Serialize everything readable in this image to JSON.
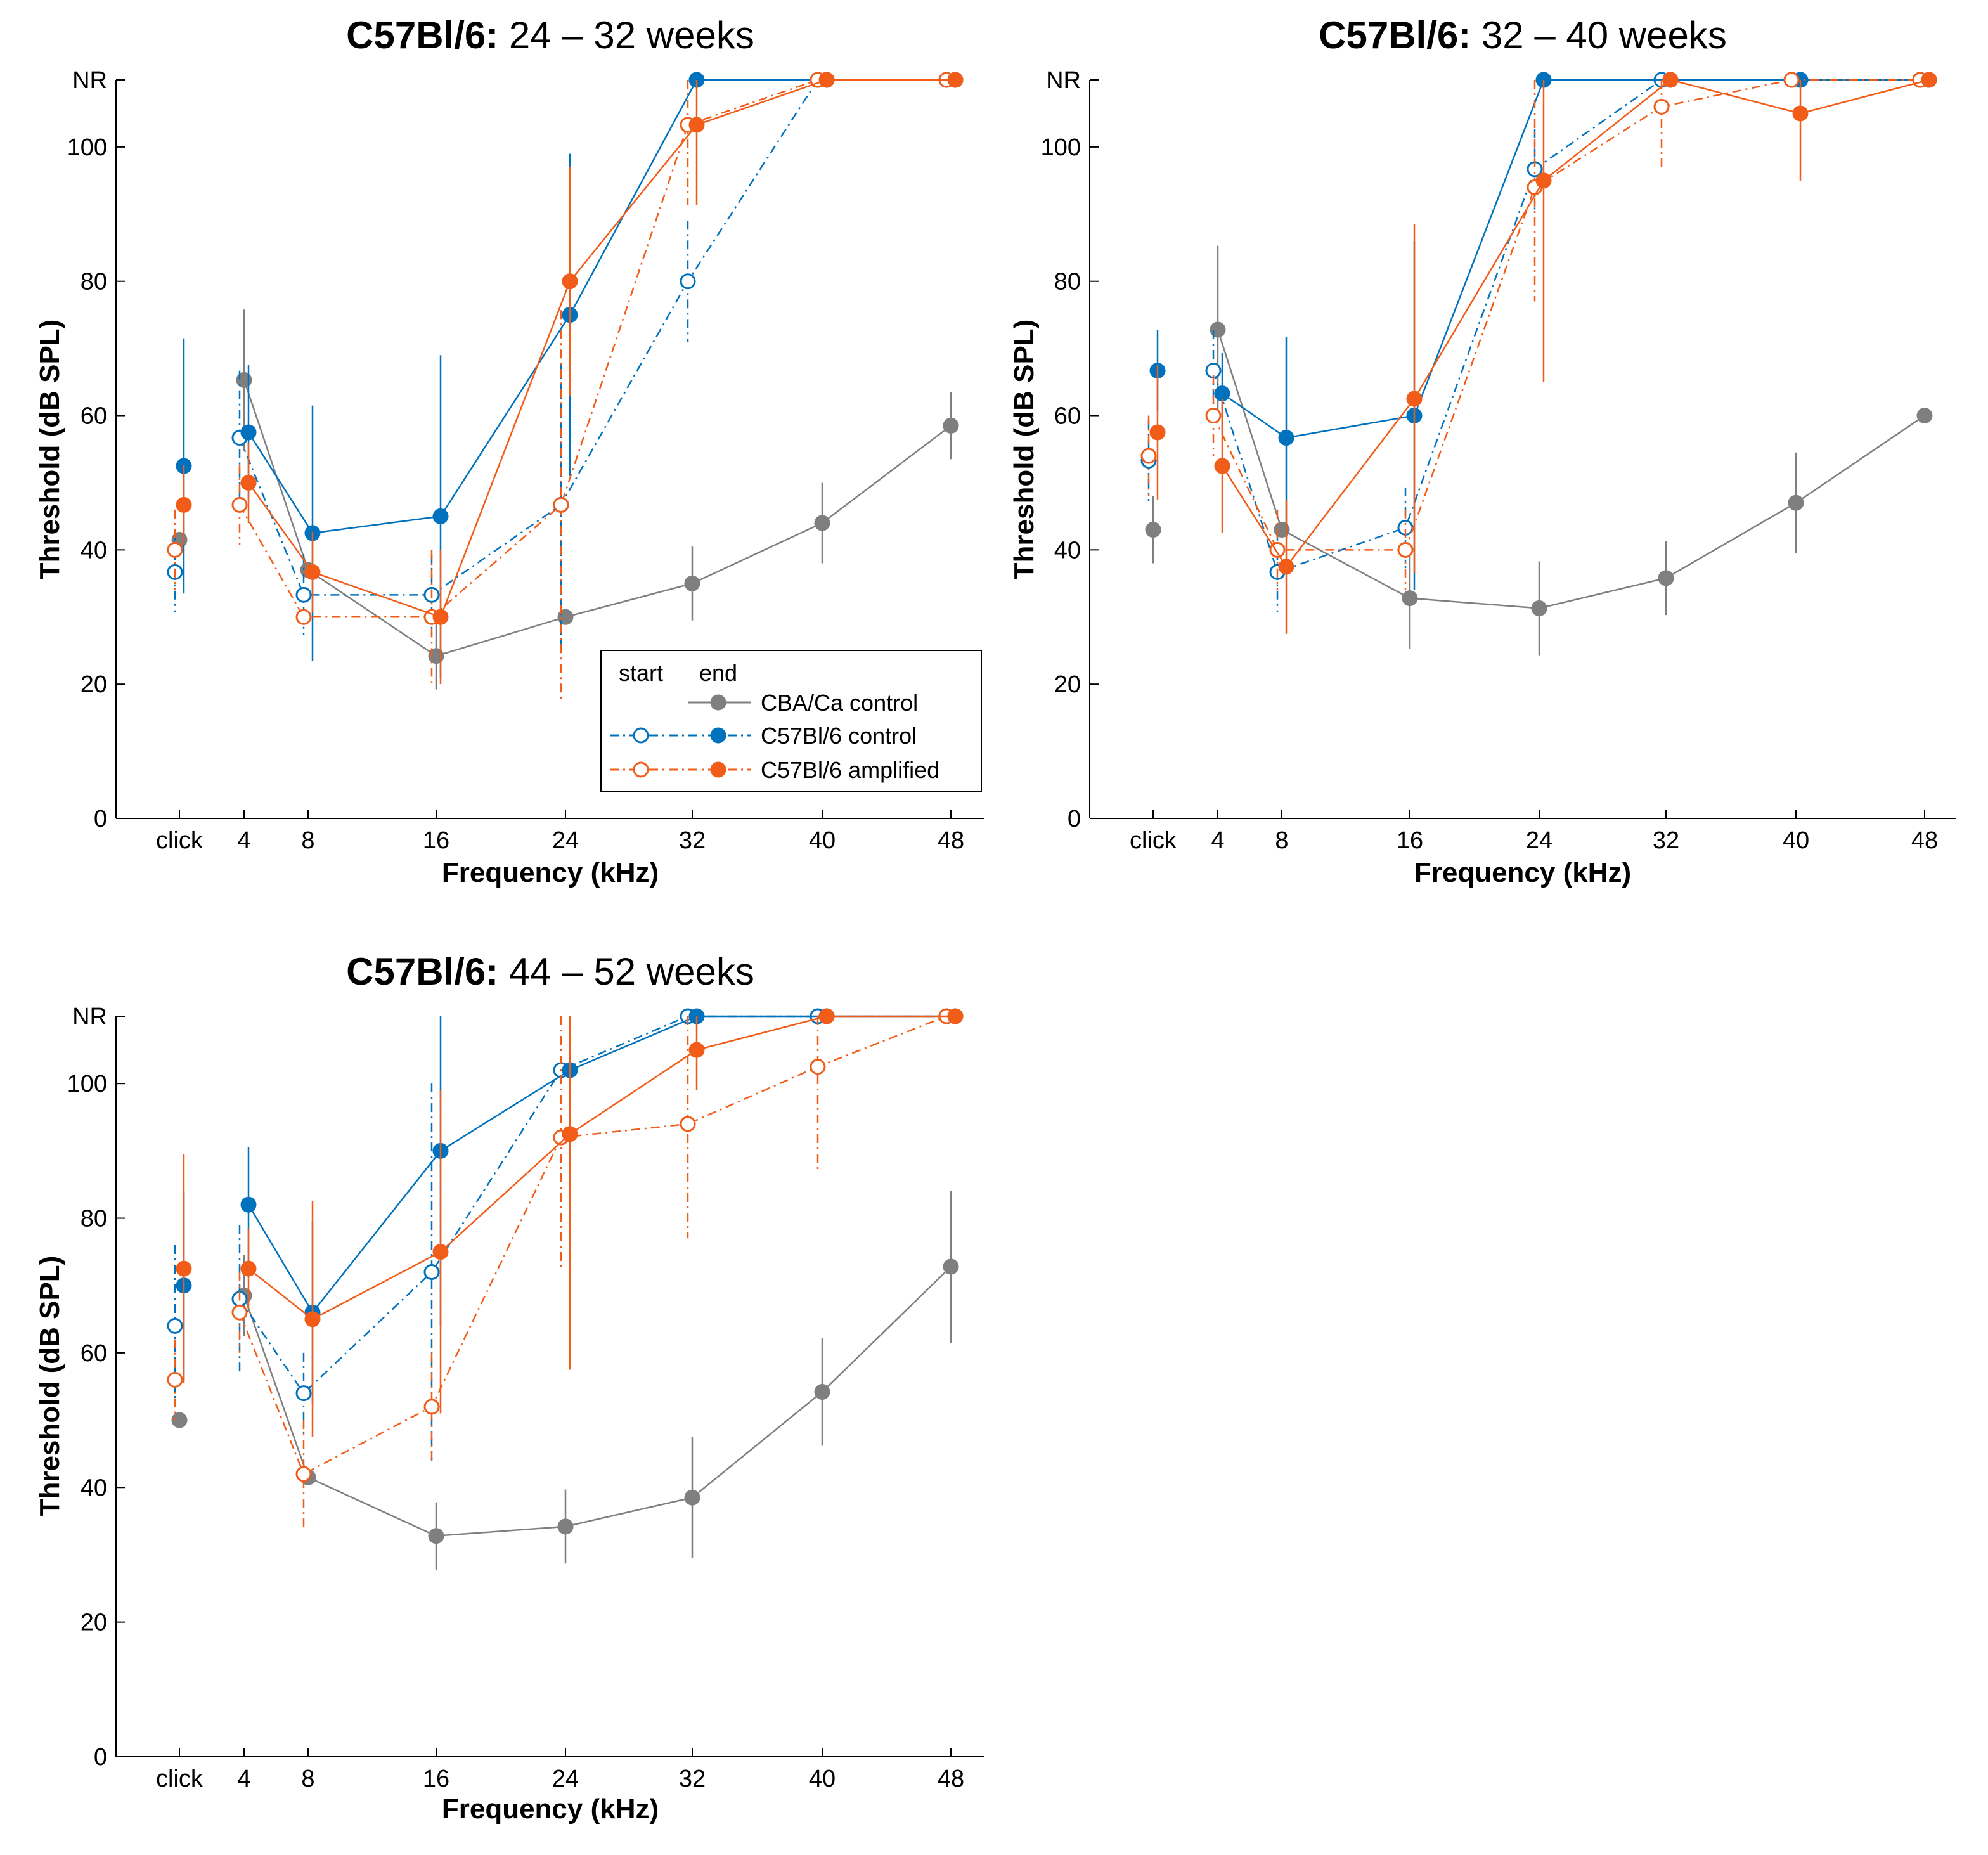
{
  "colors": {
    "cba_control": "#7f7f7f",
    "c57_control": "#0072bd",
    "c57_amplified": "#f25c19",
    "axis": "#000000"
  },
  "legend": {
    "start_label": "start",
    "end_label": "end",
    "entries": [
      "CBA/Ca control",
      "C57Bl/6 control",
      "C57Bl/6 amplified"
    ]
  },
  "chart_data": [
    {
      "type": "line",
      "title_bold": "C57Bl/6:",
      "title_rest": " 24 – 32 weeks",
      "xlabel": "Frequency (kHz)",
      "ylabel": "Threshold (dB SPL)",
      "categories": [
        "click",
        "4",
        "8",
        "16",
        "24",
        "32",
        "40",
        "48"
      ],
      "ylim": [
        0,
        110
      ],
      "yticks": [
        0,
        20,
        40,
        60,
        80,
        100,
        110
      ],
      "ytick_labels": [
        "0",
        "20",
        "40",
        "60",
        "80",
        "100",
        "NR"
      ],
      "legend_visible": true,
      "series": [
        {
          "name": "CBA/Ca control",
          "kind": "end",
          "color_key": "cba_control",
          "values": [
            41.5,
            65.3,
            37,
            24.2,
            30,
            35,
            44,
            58.5
          ],
          "err": [
            null,
            10.5,
            null,
            5,
            null,
            5.5,
            6,
            5
          ]
        },
        {
          "name": "C57Bl/6 control",
          "kind": "start",
          "color_key": "c57_control",
          "values": [
            36.7,
            56.7,
            33.3,
            33.3,
            46.7,
            80,
            110,
            110
          ],
          "err": [
            6,
            10,
            6,
            6,
            21,
            9,
            null,
            null
          ]
        },
        {
          "name": "C57Bl/6 control",
          "kind": "end",
          "color_key": "c57_control",
          "values": [
            52.5,
            57.5,
            42.5,
            45,
            75,
            110,
            110,
            110
          ],
          "err": [
            19,
            10,
            19,
            24,
            24,
            null,
            null,
            null
          ]
        },
        {
          "name": "C57Bl/6 amplified",
          "kind": "start",
          "color_key": "c57_amplified",
          "values": [
            40,
            46.7,
            30,
            30,
            46.7,
            103.3,
            110,
            110
          ],
          "err": [
            6,
            6,
            null,
            10,
            29,
            12,
            null,
            null
          ]
        },
        {
          "name": "C57Bl/6 amplified",
          "kind": "end",
          "color_key": "c57_amplified",
          "values": [
            46.7,
            50,
            36.7,
            30,
            80,
            103.3,
            110,
            110
          ],
          "err": [
            6,
            6,
            6,
            10,
            17,
            12,
            null,
            null
          ]
        }
      ]
    },
    {
      "type": "line",
      "title_bold": "C57Bl/6:",
      "title_rest": " 32 – 40 weeks",
      "xlabel": "Frequency (kHz)",
      "ylabel": "Threshold (dB SPL)",
      "categories": [
        "click",
        "4",
        "8",
        "16",
        "24",
        "32",
        "40",
        "48"
      ],
      "ylim": [
        0,
        110
      ],
      "yticks": [
        0,
        20,
        40,
        60,
        80,
        100,
        110
      ],
      "ytick_labels": [
        "0",
        "20",
        "40",
        "60",
        "80",
        "100",
        "NR"
      ],
      "legend_visible": false,
      "series": [
        {
          "name": "CBA/Ca control",
          "kind": "end",
          "color_key": "cba_control",
          "values": [
            43,
            72.8,
            43,
            32.8,
            31.3,
            35.8,
            47,
            60
          ],
          "err": [
            5,
            12.5,
            null,
            7.5,
            7,
            5.5,
            7.5,
            null
          ]
        },
        {
          "name": "C57Bl/6 control",
          "kind": "start",
          "color_key": "c57_control",
          "values": [
            53.3,
            66.7,
            36.7,
            43.3,
            96.7,
            110,
            110,
            110
          ],
          "err": [
            6,
            6,
            6,
            6,
            6,
            null,
            null,
            null
          ]
        },
        {
          "name": "C57Bl/6 control",
          "kind": "end",
          "color_key": "c57_control",
          "values": [
            66.7,
            63.3,
            56.7,
            60,
            110,
            110,
            110,
            110
          ],
          "err": [
            6,
            6,
            15,
            26,
            null,
            null,
            null,
            null
          ]
        },
        {
          "name": "C57Bl/6 amplified",
          "kind": "start",
          "color_key": "c57_amplified",
          "values": [
            54,
            60,
            40,
            40,
            94,
            106,
            110,
            110
          ],
          "err": [
            6,
            6,
            6,
            6,
            17,
            9,
            null,
            null
          ]
        },
        {
          "name": "C57Bl/6 amplified",
          "kind": "end",
          "color_key": "c57_amplified",
          "values": [
            57.5,
            52.5,
            37.5,
            62.5,
            95,
            110,
            105,
            110
          ],
          "err": [
            10,
            10,
            10,
            26,
            30,
            null,
            10,
            null
          ]
        }
      ]
    },
    {
      "type": "line",
      "title_bold": "C57Bl/6:",
      "title_rest": " 44 – 52 weeks",
      "xlabel": "Frequency (kHz)",
      "ylabel": "Threshold (dB SPL)",
      "categories": [
        "click",
        "4",
        "8",
        "16",
        "24",
        "32",
        "40",
        "48"
      ],
      "ylim": [
        0,
        110
      ],
      "yticks": [
        0,
        20,
        40,
        60,
        80,
        100,
        110
      ],
      "ytick_labels": [
        "0",
        "20",
        "40",
        "60",
        "80",
        "100",
        "NR"
      ],
      "legend_visible": false,
      "series": [
        {
          "name": "CBA/Ca control",
          "kind": "end",
          "color_key": "cba_control",
          "values": [
            50,
            68.5,
            41.5,
            32.8,
            34.2,
            38.5,
            54.2,
            72.8
          ],
          "err": [
            null,
            6,
            null,
            5,
            5.5,
            9,
            8,
            11.3
          ]
        },
        {
          "name": "C57Bl/6 control",
          "kind": "start",
          "color_key": "c57_control",
          "values": [
            64,
            68,
            54,
            72,
            102,
            110,
            110,
            110
          ],
          "err": [
            12,
            11,
            6,
            28,
            25,
            null,
            null,
            null
          ]
        },
        {
          "name": "C57Bl/6 control",
          "kind": "end",
          "color_key": "c57_control",
          "values": [
            70,
            82,
            66,
            90,
            102,
            110,
            110,
            110
          ],
          "err": [
            14,
            8.5,
            13.5,
            26,
            25,
            null,
            null,
            null
          ]
        },
        {
          "name": "C57Bl/6 amplified",
          "kind": "start",
          "color_key": "c57_amplified",
          "values": [
            56,
            66,
            42,
            52,
            92,
            94,
            102.5,
            110
          ],
          "err": [
            6,
            6,
            8,
            8,
            20,
            17,
            15.5,
            null
          ]
        },
        {
          "name": "C57Bl/6 amplified",
          "kind": "end",
          "color_key": "c57_amplified",
          "values": [
            72.5,
            72.5,
            65,
            75,
            92.5,
            105,
            110,
            110
          ],
          "err": [
            17,
            6,
            17.5,
            24,
            35,
            6,
            null,
            null
          ]
        }
      ]
    }
  ]
}
